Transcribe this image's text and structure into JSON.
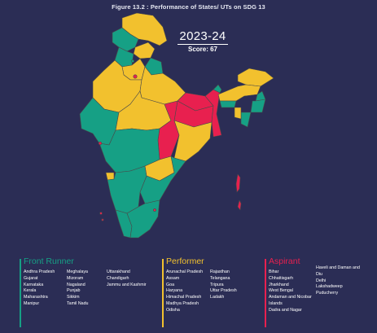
{
  "figure_title": "Figure 13.2 : Performance of States/ UTs on SDG 13",
  "year": "2023-24",
  "score": "Score: 67",
  "colors": {
    "background": "#2b2d55",
    "front_runner": "#16a085",
    "performer": "#f2c12e",
    "aspirant": "#e8204f",
    "border": "#4a4a4a"
  },
  "legend": {
    "front_runner": {
      "title": "Front Runner",
      "columns": [
        [
          "Andhra Pradesh",
          "Gujarat",
          "Karnataka",
          "Kerala",
          "Maharashtra",
          "Manipur"
        ],
        [
          "Meghalaya",
          "Mizoram",
          "Nagaland",
          "Punjab",
          "Sikkim",
          "Tamil Nadu"
        ],
        [
          "Uttarakhand",
          "Chandigarh",
          "Jammu and Kashmir"
        ]
      ]
    },
    "performer": {
      "title": "Performer",
      "columns": [
        [
          "Arunachal Pradesh",
          "Assam",
          "Goa",
          "Haryana",
          "Himachal Pradesh",
          "Madhya Pradesh",
          "Odisha"
        ],
        [
          "Rajasthan",
          "Telangana",
          "Tripura",
          "Uttar Pradesh",
          "Ladakh"
        ]
      ]
    },
    "aspirant": {
      "title": "Aspirant",
      "columns": [
        [
          "Bihar",
          "Chhattisgarh",
          "Jharkhand",
          "West Bengal",
          "Andaman and Nicobar Islands",
          "Dadra and Nagar"
        ],
        [
          "Haveli and Daman and Diu",
          "Delhi",
          "Lakshadweep",
          "Puducherry"
        ]
      ]
    }
  }
}
